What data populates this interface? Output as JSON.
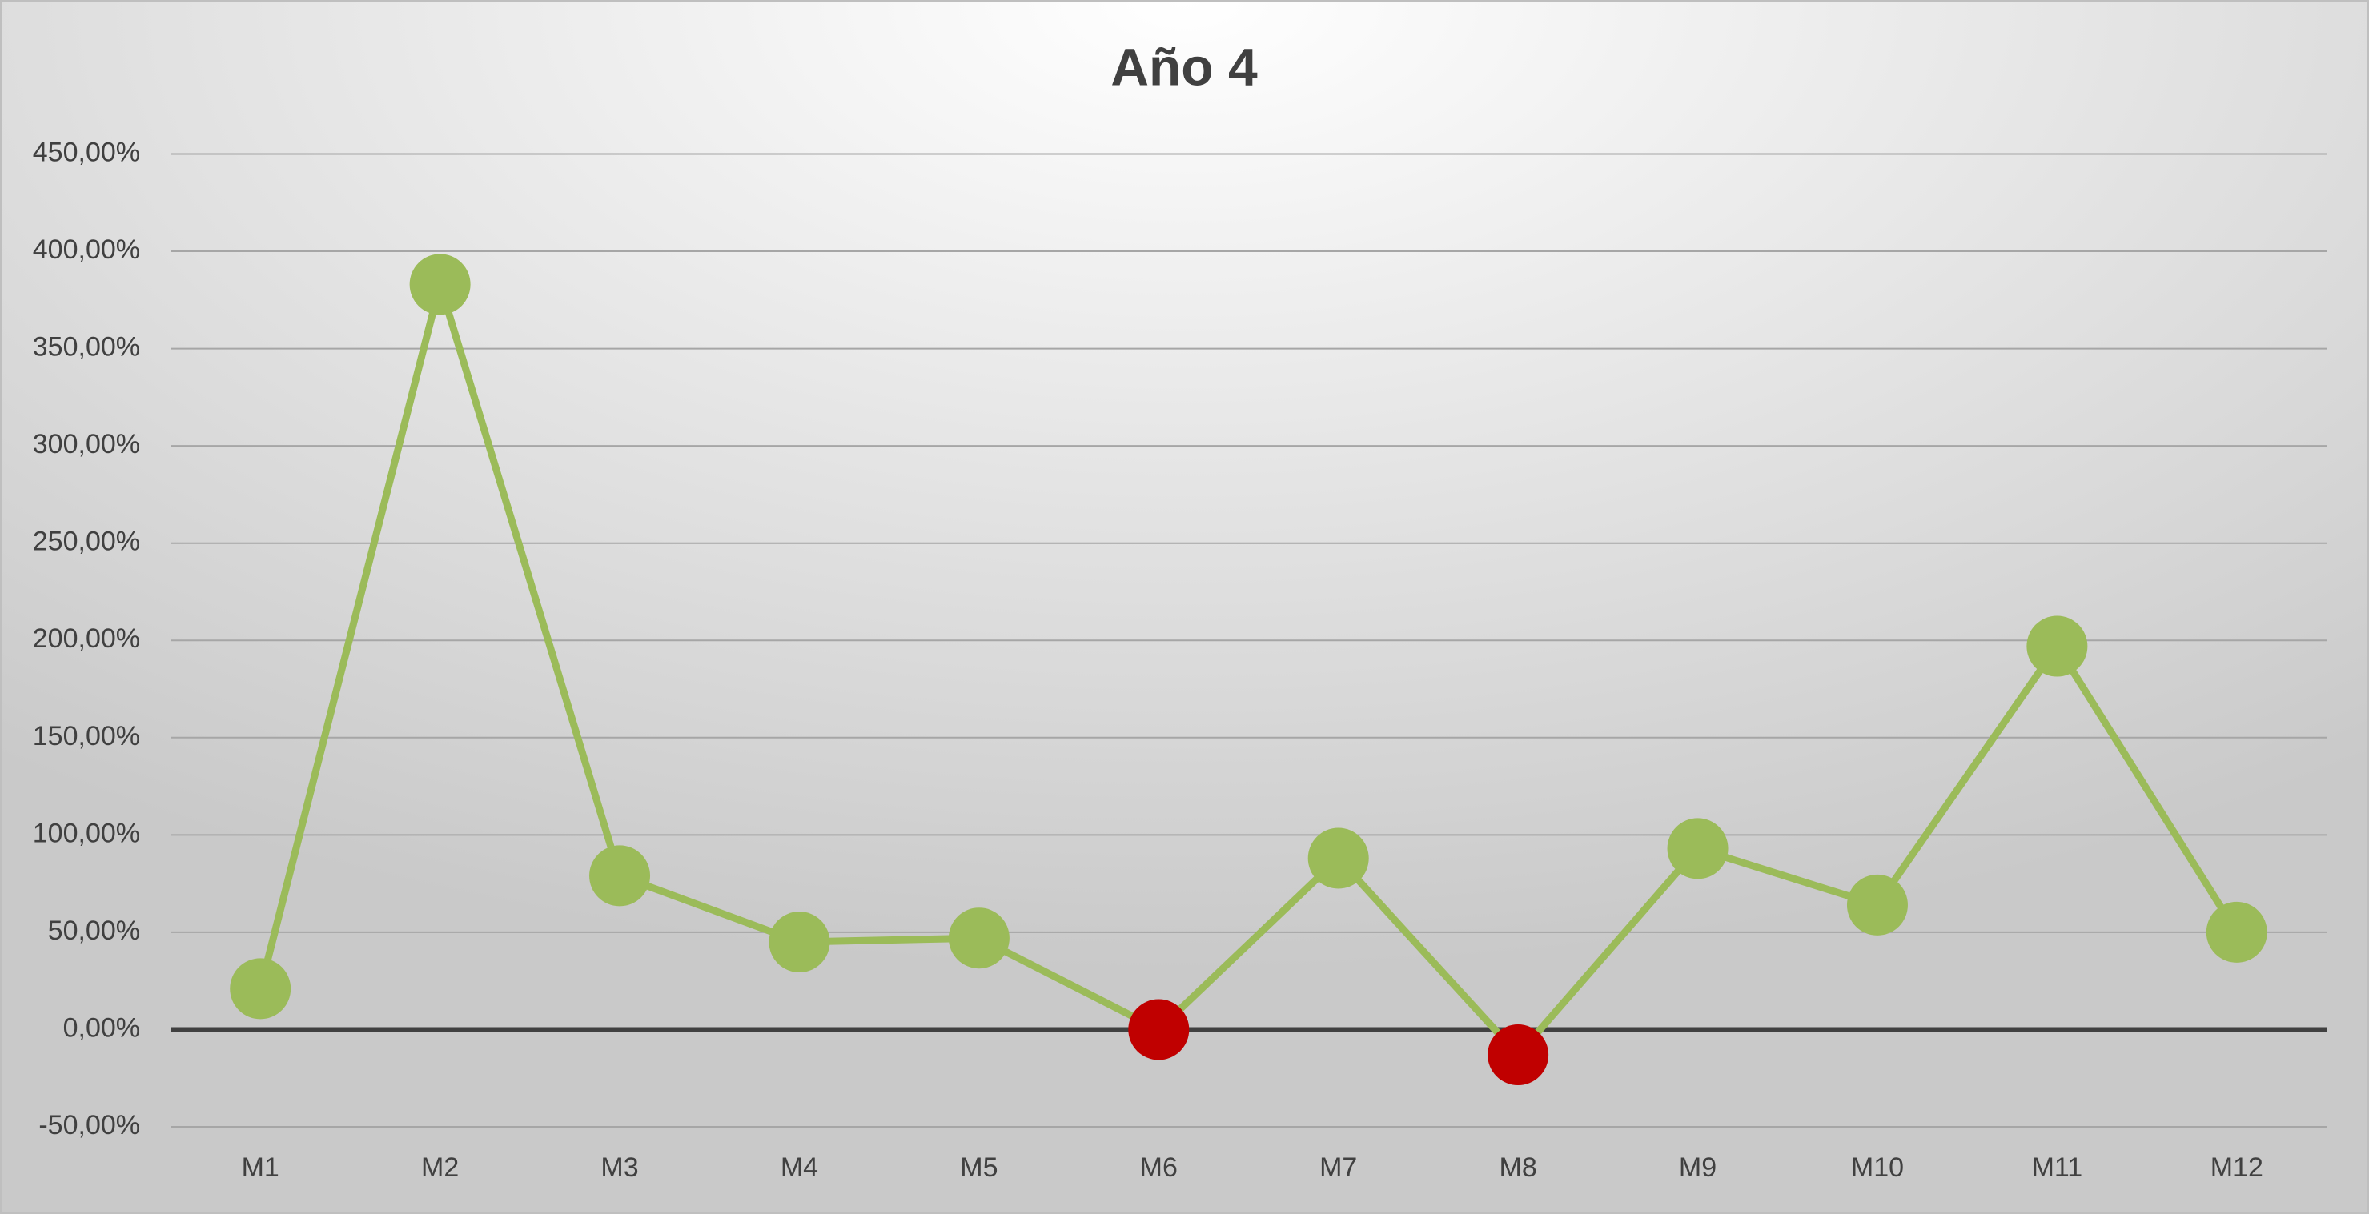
{
  "chart_data": {
    "type": "line",
    "title": "Año 4",
    "categories": [
      "M1",
      "M2",
      "M3",
      "M4",
      "M5",
      "M6",
      "M7",
      "M8",
      "M9",
      "M10",
      "M11",
      "M12"
    ],
    "series": [
      {
        "color": "#9bbb59",
        "values": [
          21,
          383,
          79,
          45,
          47,
          0,
          88,
          -13,
          93,
          64,
          197,
          50
        ],
        "point_colors": [
          "#9bbb59",
          "#9bbb59",
          "#9bbb59",
          "#9bbb59",
          "#9bbb59",
          "#c00000",
          "#9bbb59",
          "#c00000",
          "#9bbb59",
          "#9bbb59",
          "#9bbb59",
          "#9bbb59"
        ]
      }
    ],
    "ylim": [
      -50,
      450
    ],
    "yticks": [
      {
        "value": -50,
        "label": "-50,00%"
      },
      {
        "value": 0,
        "label": "0,00%"
      },
      {
        "value": 50,
        "label": "50,00%"
      },
      {
        "value": 100,
        "label": "100,00%"
      },
      {
        "value": 150,
        "label": "150,00%"
      },
      {
        "value": 200,
        "label": "200,00%"
      },
      {
        "value": 250,
        "label": "250,00%"
      },
      {
        "value": 300,
        "label": "300,00%"
      },
      {
        "value": 350,
        "label": "350,00%"
      },
      {
        "value": 400,
        "label": "400,00%"
      },
      {
        "value": 450,
        "label": "450,00%"
      }
    ],
    "grid": true
  }
}
